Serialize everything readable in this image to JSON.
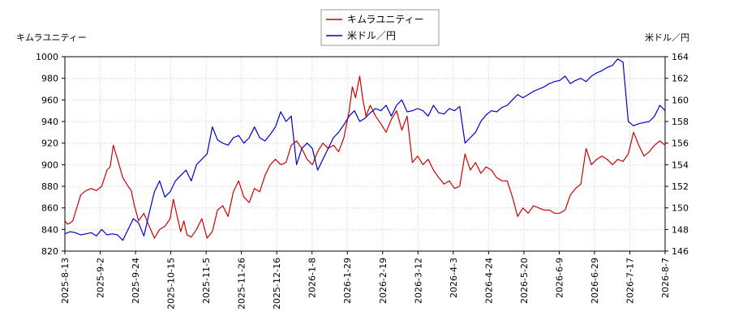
{
  "chart_data": {
    "type": "line",
    "left_axis_label": "キムラユニティー",
    "right_axis_label": "米ドル／円",
    "legend_position": "top-center",
    "grid": true,
    "x_ticks": [
      "2025-8-13",
      "2025-9-2",
      "2025-9-24",
      "2025-10-15",
      "2025-11-5",
      "2025-11-26",
      "2025-12-16",
      "2026-1-8",
      "2026-1-29",
      "2026-2-19",
      "2026-3-12",
      "2026-4-3",
      "2026-4-24",
      "2026-5-20",
      "2026-6-9",
      "2026-6-29",
      "2026-7-17",
      "2026-8-7"
    ],
    "y_left": {
      "min": 820,
      "max": 1000,
      "ticks": [
        "820",
        "840",
        "860",
        "880",
        "900",
        "920",
        "940",
        "960",
        "980",
        "1000"
      ],
      "tick_color": "#cc0000"
    },
    "y_right": {
      "min": 146,
      "max": 164,
      "ticks": [
        "146",
        "148",
        "150",
        "152",
        "154",
        "156",
        "158",
        "160",
        "162",
        "164"
      ],
      "tick_color": "#0000cc"
    },
    "series": [
      {
        "name": "キムラユニティー",
        "color": "#cc0000",
        "axis": "left",
        "points": [
          [
            0,
            848
          ],
          [
            0.25,
            845
          ],
          [
            0.5,
            846
          ],
          [
            0.75,
            848
          ],
          [
            1,
            856
          ],
          [
            1.5,
            872
          ],
          [
            2,
            876
          ],
          [
            2.5,
            878
          ],
          [
            3,
            876
          ],
          [
            3.5,
            880
          ],
          [
            4,
            895
          ],
          [
            4.3,
            898
          ],
          [
            4.6,
            918
          ],
          [
            5,
            905
          ],
          [
            5.5,
            888
          ],
          [
            6,
            880
          ],
          [
            6.3,
            876
          ],
          [
            6.6,
            862
          ],
          [
            7,
            848
          ],
          [
            7.5,
            855
          ],
          [
            8,
            843
          ],
          [
            8.5,
            832
          ],
          [
            9,
            840
          ],
          [
            9.5,
            843
          ],
          [
            10,
            850
          ],
          [
            10.3,
            868
          ],
          [
            10.6,
            855
          ],
          [
            11,
            838
          ],
          [
            11.3,
            848
          ],
          [
            11.6,
            835
          ],
          [
            12,
            833
          ],
          [
            12.5,
            840
          ],
          [
            13,
            850
          ],
          [
            13.5,
            832
          ],
          [
            14,
            838
          ],
          [
            14.5,
            858
          ],
          [
            15,
            862
          ],
          [
            15.5,
            852
          ],
          [
            16,
            875
          ],
          [
            16.5,
            885
          ],
          [
            17,
            870
          ],
          [
            17.5,
            865
          ],
          [
            18,
            878
          ],
          [
            18.5,
            875
          ],
          [
            19,
            890
          ],
          [
            19.5,
            900
          ],
          [
            20,
            905
          ],
          [
            20.5,
            900
          ],
          [
            21,
            902
          ],
          [
            21.5,
            918
          ],
          [
            22,
            922
          ],
          [
            22.5,
            915
          ],
          [
            23,
            905
          ],
          [
            23.5,
            900
          ],
          [
            24,
            912
          ],
          [
            24.5,
            920
          ],
          [
            25,
            915
          ],
          [
            25.5,
            918
          ],
          [
            26,
            912
          ],
          [
            26.5,
            925
          ],
          [
            27,
            950
          ],
          [
            27.3,
            972
          ],
          [
            27.6,
            962
          ],
          [
            28,
            982
          ],
          [
            28.3,
            960
          ],
          [
            28.6,
            945
          ],
          [
            29,
            955
          ],
          [
            29.5,
            945
          ],
          [
            30,
            938
          ],
          [
            30.5,
            930
          ],
          [
            31,
            942
          ],
          [
            31.5,
            950
          ],
          [
            32,
            932
          ],
          [
            32.5,
            945
          ],
          [
            33,
            902
          ],
          [
            33.5,
            908
          ],
          [
            34,
            900
          ],
          [
            34.5,
            905
          ],
          [
            35,
            895
          ],
          [
            35.5,
            888
          ],
          [
            36,
            882
          ],
          [
            36.5,
            885
          ],
          [
            37,
            878
          ],
          [
            37.5,
            880
          ],
          [
            38,
            910
          ],
          [
            38.5,
            895
          ],
          [
            39,
            902
          ],
          [
            39.5,
            892
          ],
          [
            40,
            898
          ],
          [
            40.5,
            895
          ],
          [
            41,
            888
          ],
          [
            41.5,
            885
          ],
          [
            42,
            885
          ],
          [
            42.5,
            870
          ],
          [
            43,
            852
          ],
          [
            43.5,
            860
          ],
          [
            44,
            855
          ],
          [
            44.5,
            862
          ],
          [
            45,
            860
          ],
          [
            45.5,
            858
          ],
          [
            46,
            858
          ],
          [
            46.5,
            855
          ],
          [
            47,
            855
          ],
          [
            47.5,
            858
          ],
          [
            48,
            872
          ],
          [
            48.5,
            878
          ],
          [
            49,
            882
          ],
          [
            49.5,
            915
          ],
          [
            50,
            900
          ],
          [
            50.5,
            905
          ],
          [
            51,
            908
          ],
          [
            51.5,
            905
          ],
          [
            52,
            900
          ],
          [
            52.5,
            905
          ],
          [
            53,
            903
          ],
          [
            53.5,
            910
          ],
          [
            54,
            930
          ],
          [
            54.5,
            918
          ],
          [
            55,
            908
          ],
          [
            55.5,
            912
          ],
          [
            56,
            918
          ],
          [
            56.5,
            922
          ],
          [
            57,
            918
          ]
        ]
      },
      {
        "name": "米ドル／円",
        "color": "#0000cc",
        "axis": "right",
        "points": [
          [
            0,
            147.6
          ],
          [
            0.5,
            147.8
          ],
          [
            1,
            147.7
          ],
          [
            1.5,
            147.5
          ],
          [
            2,
            147.6
          ],
          [
            2.5,
            147.7
          ],
          [
            3,
            147.4
          ],
          [
            3.5,
            148.0
          ],
          [
            4,
            147.5
          ],
          [
            4.5,
            147.6
          ],
          [
            5,
            147.5
          ],
          [
            5.5,
            147.0
          ],
          [
            6,
            148.0
          ],
          [
            6.5,
            149.0
          ],
          [
            7,
            148.6
          ],
          [
            7.5,
            147.4
          ],
          [
            8,
            149.5
          ],
          [
            8.5,
            151.5
          ],
          [
            9,
            152.5
          ],
          [
            9.5,
            151.0
          ],
          [
            10,
            151.5
          ],
          [
            10.5,
            152.5
          ],
          [
            11,
            153.0
          ],
          [
            11.5,
            153.5
          ],
          [
            12,
            152.5
          ],
          [
            12.5,
            154.0
          ],
          [
            13,
            154.5
          ],
          [
            13.5,
            155.0
          ],
          [
            14,
            157.5
          ],
          [
            14.5,
            156.3
          ],
          [
            15,
            156.0
          ],
          [
            15.5,
            155.8
          ],
          [
            16,
            156.5
          ],
          [
            16.5,
            156.7
          ],
          [
            17,
            156.0
          ],
          [
            17.5,
            156.5
          ],
          [
            18,
            157.5
          ],
          [
            18.5,
            156.5
          ],
          [
            19,
            156.2
          ],
          [
            19.5,
            156.8
          ],
          [
            20,
            157.5
          ],
          [
            20.5,
            158.9
          ],
          [
            21,
            158.0
          ],
          [
            21.5,
            158.5
          ],
          [
            22,
            154.0
          ],
          [
            22.5,
            155.5
          ],
          [
            23,
            156.0
          ],
          [
            23.5,
            155.5
          ],
          [
            24,
            153.5
          ],
          [
            24.5,
            154.5
          ],
          [
            25,
            155.5
          ],
          [
            25.5,
            156.5
          ],
          [
            26,
            157.0
          ],
          [
            26.5,
            157.7
          ],
          [
            27,
            158.5
          ],
          [
            27.5,
            159.0
          ],
          [
            28,
            158.0
          ],
          [
            28.5,
            158.3
          ],
          [
            29,
            158.8
          ],
          [
            29.5,
            159.2
          ],
          [
            30,
            159.0
          ],
          [
            30.5,
            159.5
          ],
          [
            31,
            158.5
          ],
          [
            31.5,
            159.5
          ],
          [
            32,
            160.0
          ],
          [
            32.5,
            158.9
          ],
          [
            33,
            159.0
          ],
          [
            33.5,
            159.2
          ],
          [
            34,
            159.0
          ],
          [
            34.5,
            158.5
          ],
          [
            35,
            159.5
          ],
          [
            35.5,
            158.8
          ],
          [
            36,
            158.7
          ],
          [
            36.5,
            159.2
          ],
          [
            37,
            159.0
          ],
          [
            37.5,
            159.4
          ],
          [
            38,
            156.0
          ],
          [
            38.5,
            156.5
          ],
          [
            39,
            157.0
          ],
          [
            39.5,
            158.0
          ],
          [
            40,
            158.6
          ],
          [
            40.5,
            159.0
          ],
          [
            41,
            158.9
          ],
          [
            41.5,
            159.3
          ],
          [
            42,
            159.5
          ],
          [
            42.5,
            160.0
          ],
          [
            43,
            160.5
          ],
          [
            43.5,
            160.2
          ],
          [
            44,
            160.5
          ],
          [
            44.5,
            160.8
          ],
          [
            45,
            161.0
          ],
          [
            45.5,
            161.2
          ],
          [
            46,
            161.5
          ],
          [
            46.5,
            161.7
          ],
          [
            47,
            161.8
          ],
          [
            47.5,
            162.2
          ],
          [
            48,
            161.5
          ],
          [
            48.5,
            161.8
          ],
          [
            49,
            162.0
          ],
          [
            49.5,
            161.7
          ],
          [
            50,
            162.2
          ],
          [
            50.5,
            162.5
          ],
          [
            51,
            162.7
          ],
          [
            51.5,
            163.0
          ],
          [
            52,
            163.2
          ],
          [
            52.5,
            163.8
          ],
          [
            53,
            163.5
          ],
          [
            53.5,
            158.0
          ],
          [
            54,
            157.6
          ],
          [
            54.5,
            157.8
          ],
          [
            55,
            157.9
          ],
          [
            55.5,
            158.0
          ],
          [
            56,
            158.5
          ],
          [
            56.5,
            159.5
          ],
          [
            57,
            159.0
          ]
        ]
      }
    ]
  }
}
